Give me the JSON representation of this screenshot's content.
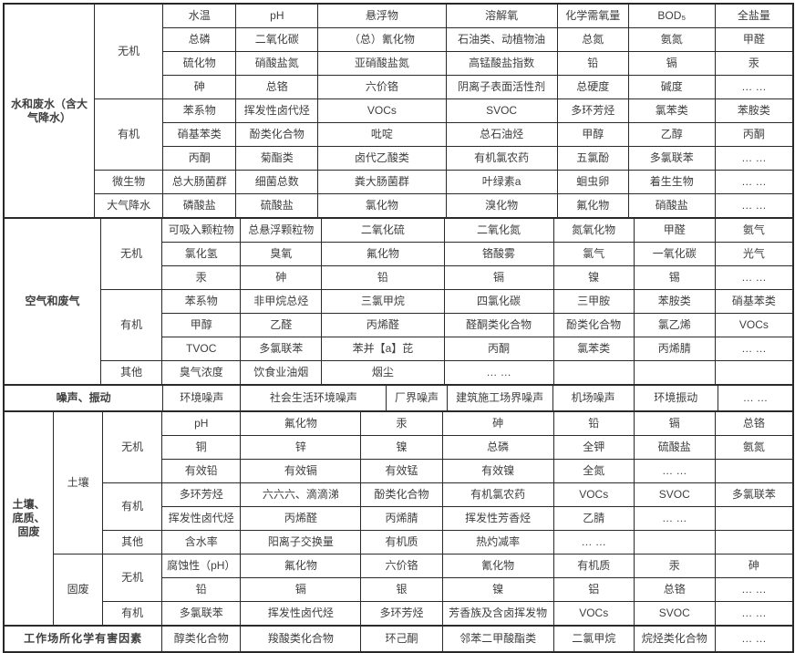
{
  "colors": {
    "border": "#2a2a2a",
    "text": "#3e3e3e",
    "background": "#ffffff"
  },
  "table": {
    "sections": [
      {
        "id": "water",
        "label": "水和废水（含大\n气降水）",
        "groups": [
          {
            "label": "无机",
            "rows": [
              [
                "水温",
                "pH",
                "悬浮物",
                "溶解氧",
                "化学需氧量",
                "BOD₅",
                "全盐量"
              ],
              [
                "总磷",
                "二氧化碳",
                "（总）氰化物",
                "石油类、动植物油",
                "总氮",
                "氨氮",
                "甲醛"
              ],
              [
                "硫化物",
                "硝酸盐氮",
                "亚硝酸盐氮",
                "高锰酸盐指数",
                "铅",
                "镉",
                "汞"
              ],
              [
                "砷",
                "总铬",
                "六价铬",
                "阴离子表面活性剂",
                "总硬度",
                "碱度",
                "… …"
              ]
            ]
          },
          {
            "label": "有机",
            "rows": [
              [
                "苯系物",
                "挥发性卤代烃",
                "VOCs",
                "SVOC",
                "多环芳烃",
                "氯苯类",
                "苯胺类"
              ],
              [
                "硝基苯类",
                "酚类化合物",
                "吡啶",
                "总石油烃",
                "甲醇",
                "乙醇",
                "丙酮"
              ],
              [
                "丙酮",
                "菊酯类",
                "卤代乙酸类",
                "有机氯农药",
                "五氯酚",
                "多氯联苯",
                "… …"
              ]
            ]
          },
          {
            "label": "微生物",
            "rows": [
              [
                "总大肠菌群",
                "细菌总数",
                "粪大肠菌群",
                "叶绿素a",
                "蛔虫卵",
                "着生生物",
                "… …"
              ]
            ]
          },
          {
            "label": "大气降水",
            "rows": [
              [
                "磷酸盐",
                "硫酸盐",
                "氯化物",
                "溴化物",
                "氟化物",
                "硝酸盐",
                "… …"
              ]
            ]
          }
        ]
      },
      {
        "id": "air",
        "label": "空气和废气",
        "groups": [
          {
            "label": "无机",
            "rows": [
              [
                "可吸入颗粒物",
                "总悬浮颗粒物",
                "二氧化硫",
                "二氧化氮",
                "氮氧化物",
                "甲醛",
                "氨气"
              ],
              [
                "氯化氢",
                "臭氧",
                "氟化物",
                "铬酸雾",
                "氯气",
                "一氧化碳",
                "光气"
              ],
              [
                "汞",
                "砷",
                "铅",
                "镉",
                "镍",
                "锡",
                "… …"
              ]
            ]
          },
          {
            "label": "有机",
            "rows": [
              [
                "苯系物",
                "非甲烷总烃",
                "三氯甲烷",
                "四氯化碳",
                "三甲胺",
                "苯胺类",
                "硝基苯类"
              ],
              [
                "甲醇",
                "乙醛",
                "丙烯醛",
                "醛酮类化合物",
                "酚类化合物",
                "氯乙烯",
                "VOCs"
              ],
              [
                "TVOC",
                "多氯联苯",
                "苯并【a】芘",
                "丙酮",
                "氯苯类",
                "丙烯腈",
                "… …"
              ]
            ]
          },
          {
            "label": "其他",
            "rows": [
              [
                "臭气浓度",
                "饮食业油烟",
                "烟尘",
                "… …",
                "",
                "",
                ""
              ]
            ]
          }
        ]
      },
      {
        "id": "noise",
        "label": "噪声、振动",
        "cells": [
          "环境噪声",
          "社会生活环境噪声",
          "厂界噪声",
          "建筑施工场界噪声",
          "机场噪声",
          "环境振动",
          "… …"
        ]
      },
      {
        "id": "soil",
        "label": "土壤、\n底质、\n固废",
        "subsections": [
          {
            "label": "土壤",
            "groups": [
              {
                "label": "无机",
                "rows": [
                  [
                    "pH",
                    "氟化物",
                    "汞",
                    "砷",
                    "铅",
                    "镉",
                    "总铬"
                  ],
                  [
                    "铜",
                    "锌",
                    "镍",
                    "总磷",
                    "全钾",
                    "硫酸盐",
                    "氨氮"
                  ],
                  [
                    "有效铅",
                    "有效镉",
                    "有效锰",
                    "有效镍",
                    "全氮",
                    "… …",
                    ""
                  ]
                ]
              },
              {
                "label": "有机",
                "rows": [
                  [
                    "多环芳烃",
                    "六六六、滴滴涕",
                    "酚类化合物",
                    "有机氯农药",
                    "VOCs",
                    "SVOC",
                    "多氯联苯"
                  ],
                  [
                    "挥发性卤代烃",
                    "丙烯醛",
                    "丙烯腈",
                    "挥发性芳香烃",
                    "乙腈",
                    "… …",
                    ""
                  ]
                ]
              },
              {
                "label": "其他",
                "rows": [
                  [
                    "含水率",
                    "阳离子交换量",
                    "有机质",
                    "热灼减率",
                    "… …",
                    "",
                    ""
                  ]
                ]
              }
            ]
          },
          {
            "label": "固废",
            "groups": [
              {
                "label": "无机",
                "rows": [
                  [
                    "腐蚀性（pH）",
                    "氟化物",
                    "六价铬",
                    "氰化物",
                    "有机质",
                    "汞",
                    "砷"
                  ],
                  [
                    "铅",
                    "镉",
                    "银",
                    "镍",
                    "铝",
                    "总铬",
                    "… …"
                  ]
                ]
              },
              {
                "label": "有机",
                "rows": [
                  [
                    "多氯联苯",
                    "挥发性卤代烃",
                    "多环芳烃",
                    "芳香族及含卤挥发物",
                    "VOCs",
                    "SVOC",
                    "… …"
                  ]
                ]
              }
            ]
          }
        ]
      },
      {
        "id": "workplace",
        "label": "工作场所化学有害因素",
        "cells": [
          "醇类化合物",
          "羧酸类化合物",
          "环己酮",
          "邻苯二甲酸酯类",
          "二氯甲烷",
          "烷烃类化合物",
          "… …"
        ]
      }
    ]
  }
}
